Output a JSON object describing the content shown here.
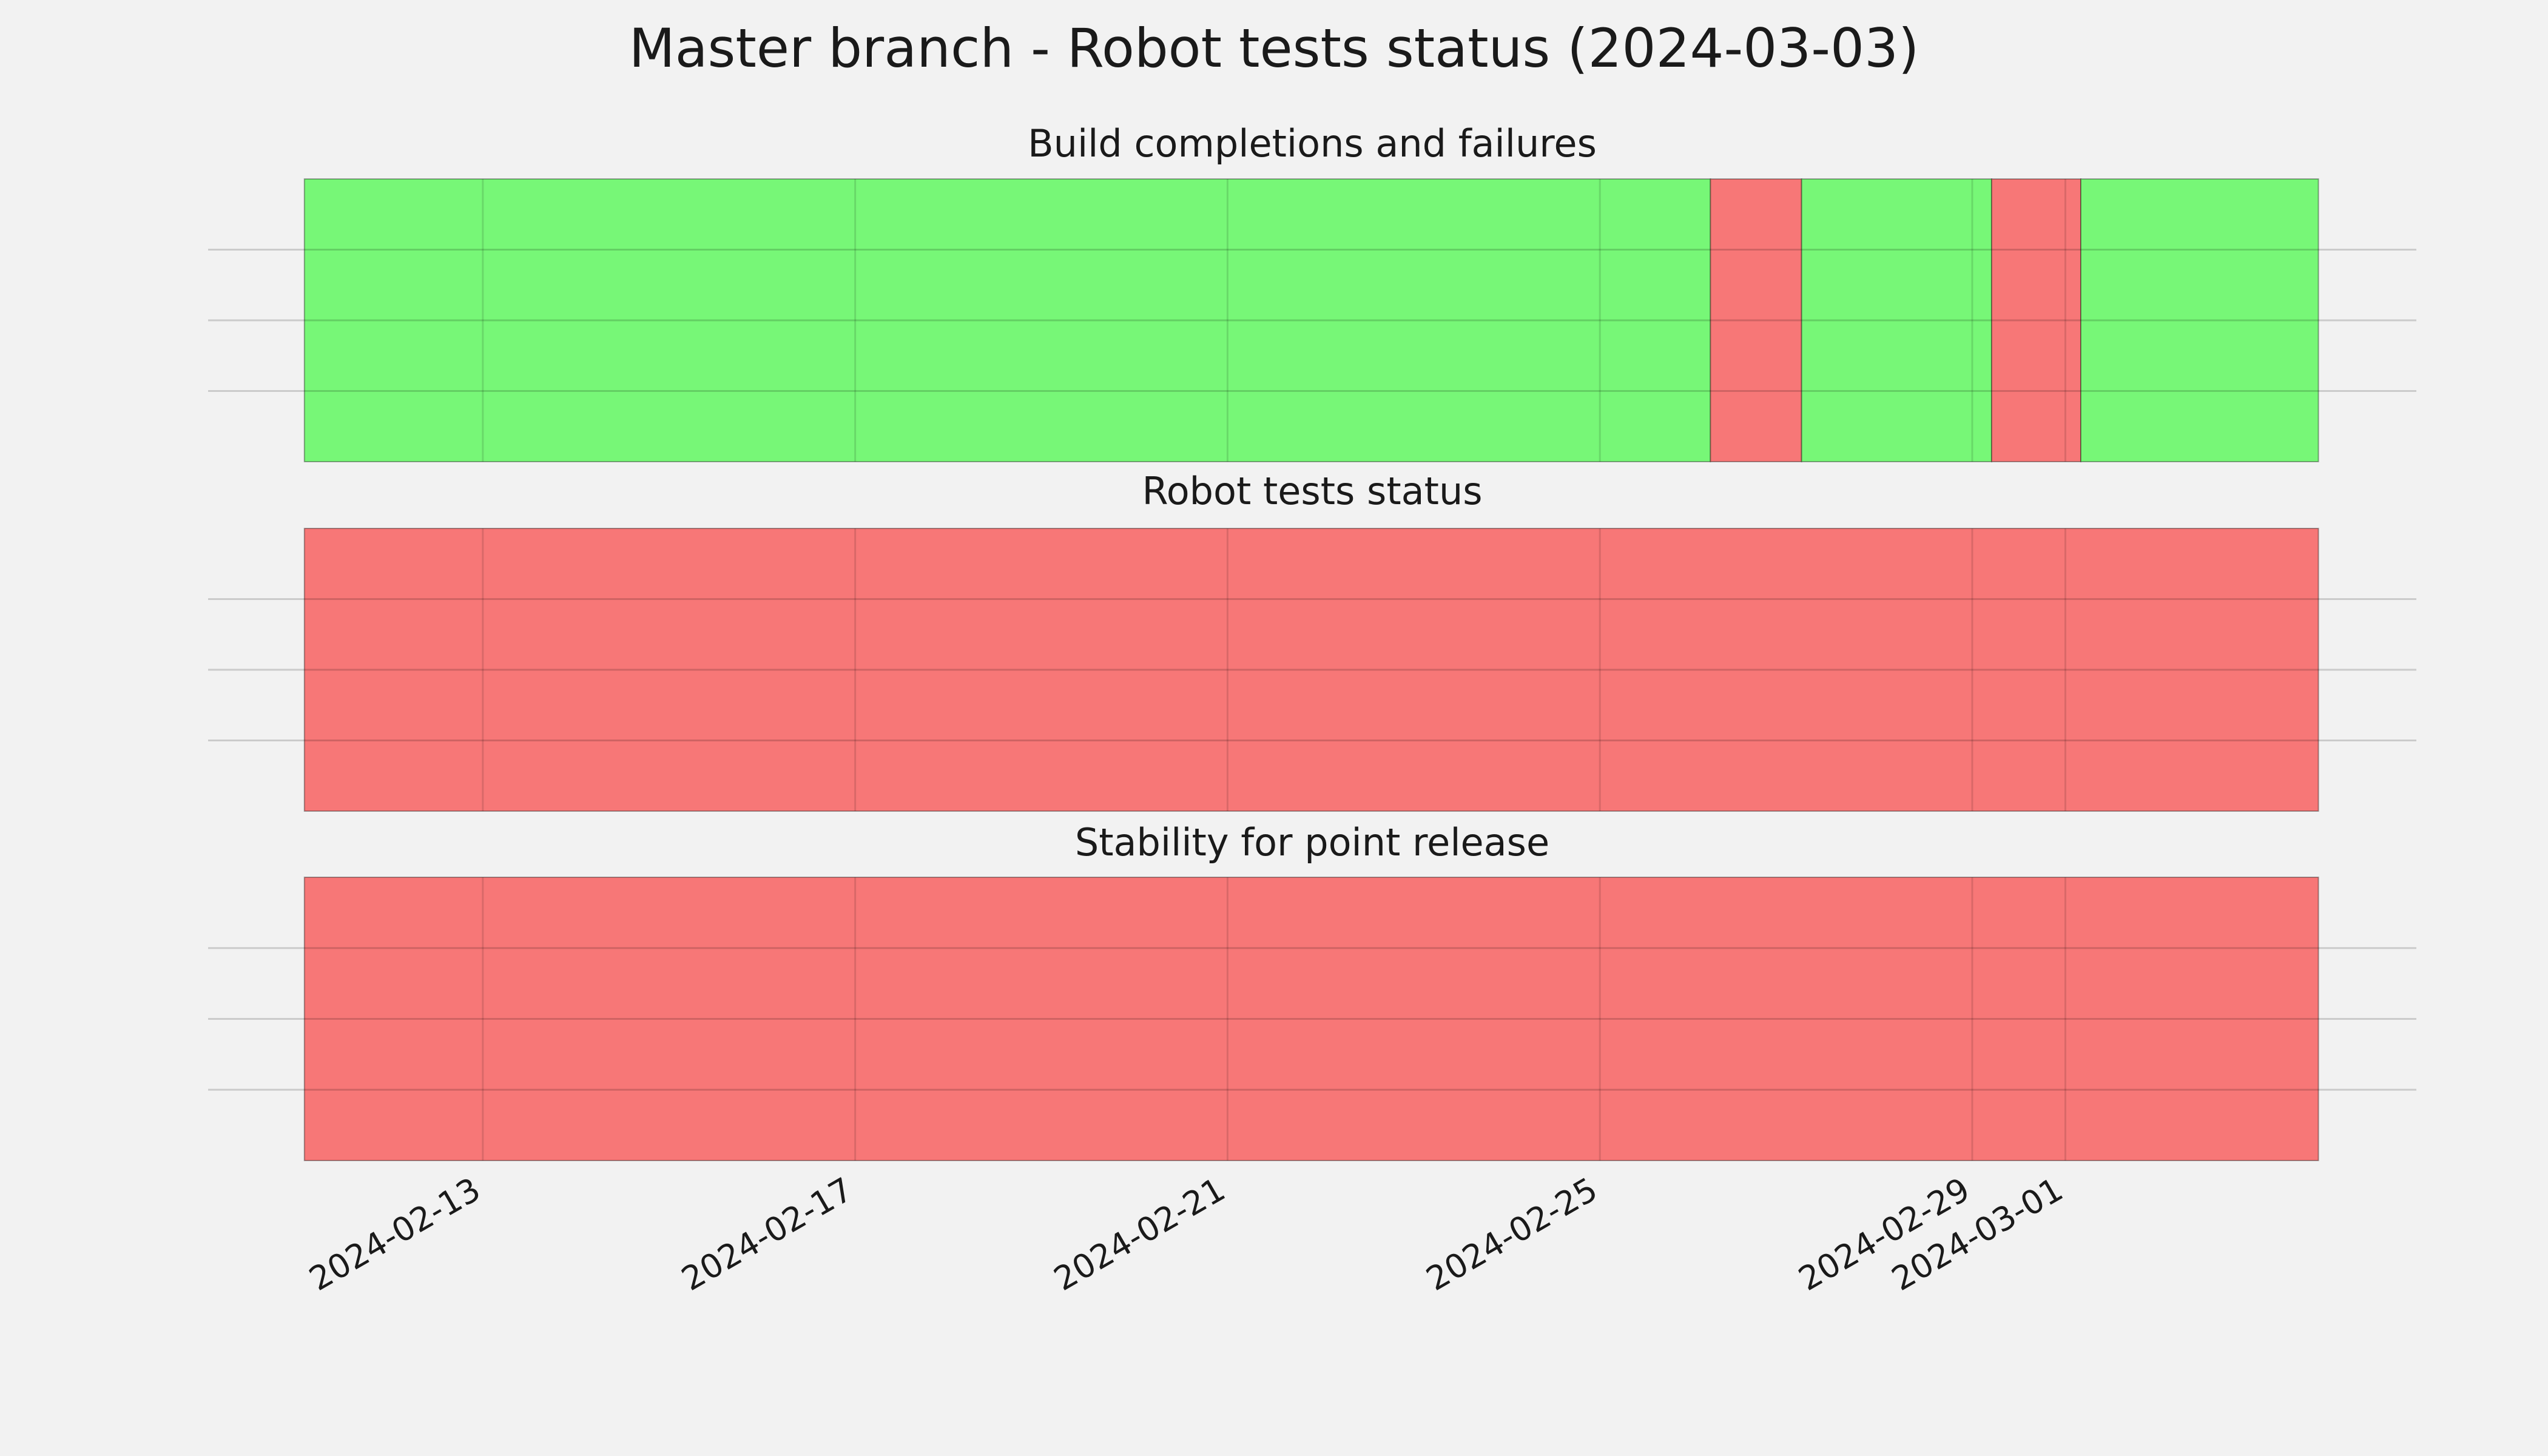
{
  "chart_data": {
    "type": "timeline",
    "title": "Master branch - Robot tests status (2024-03-03)",
    "xlim": [
      "2024-02-10T01:10:00Z",
      "2024-03-04T18:30:00Z"
    ],
    "xticks": [
      "2024-02-13",
      "2024-02-17",
      "2024-02-21",
      "2024-02-25",
      "2024-02-29",
      "2024-03-01"
    ],
    "grid": true,
    "panels": [
      {
        "title": "Build completions and failures",
        "ylim": [
          0,
          1
        ],
        "yticks": [
          0.25,
          0.5,
          0.75
        ],
        "segments": [
          {
            "start": "2024-02-11T02:00:00Z",
            "end": "2024-02-26T04:30:00Z",
            "color": "#77f777"
          },
          {
            "start": "2024-02-26T04:30:00Z",
            "end": "2024-02-27T04:00:00Z",
            "color": "#f77777"
          },
          {
            "start": "2024-02-27T04:00:00Z",
            "end": "2024-02-29T05:00:00Z",
            "color": "#77f777"
          },
          {
            "start": "2024-02-29T05:00:00Z",
            "end": "2024-03-01T04:00:00Z",
            "color": "#f77777"
          },
          {
            "start": "2024-03-01T04:00:00Z",
            "end": "2024-03-03T17:15:00Z",
            "color": "#77f777"
          }
        ]
      },
      {
        "title": "Robot tests status",
        "ylim": [
          0,
          1
        ],
        "yticks": [
          0.25,
          0.5,
          0.75
        ],
        "segments": [
          {
            "start": "2024-02-11T02:00:00Z",
            "end": "2024-03-03T17:15:00Z",
            "color": "#f77777"
          }
        ]
      },
      {
        "title": "Stability for point release",
        "ylim": [
          0,
          1
        ],
        "yticks": [
          0.25,
          0.5,
          0.75
        ],
        "segments": [
          {
            "start": "2024-02-11T02:00:00Z",
            "end": "2024-03-03T17:15:00Z",
            "color": "#f77777"
          }
        ]
      }
    ]
  }
}
